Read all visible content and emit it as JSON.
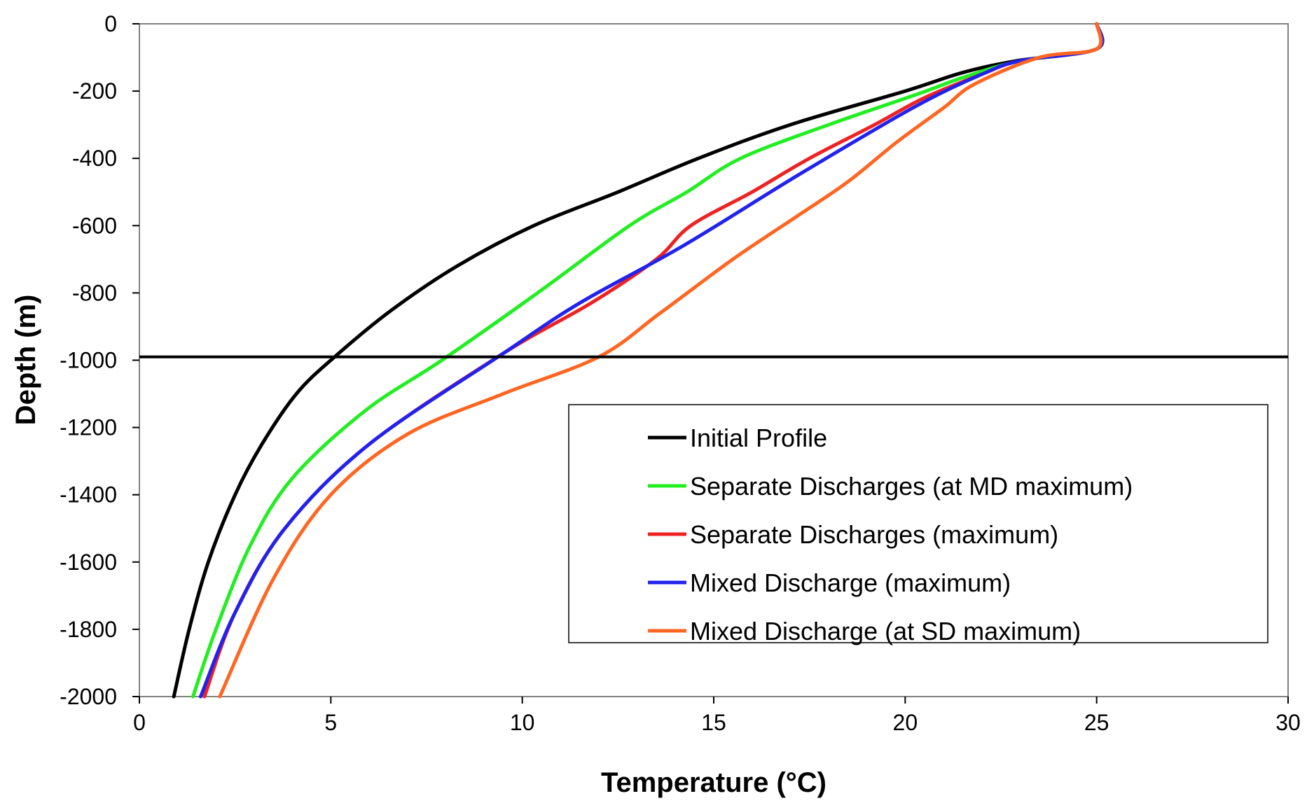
{
  "chart_data": {
    "type": "line",
    "title": "",
    "xlabel": "Temperature (°C)",
    "ylabel": "Depth (m)",
    "xlim": [
      0,
      30
    ],
    "ylim": [
      -2000,
      0
    ],
    "xticks": [
      0,
      5,
      10,
      15,
      20,
      25,
      30
    ],
    "yticks": [
      0,
      -200,
      -400,
      -600,
      -800,
      -1000,
      -1200,
      -1400,
      -1600,
      -1800,
      -2000
    ],
    "grid": false,
    "legend_position": "bottom-right",
    "reference_line": {
      "orientation": "horizontal",
      "y": -990,
      "color": "#000000"
    },
    "series": [
      {
        "name": "Initial Profile",
        "color": "#000000",
        "points": [
          [
            25,
            0
          ],
          [
            25,
            -75
          ],
          [
            22.9,
            -110
          ],
          [
            21.5,
            -145
          ],
          [
            20,
            -200
          ],
          [
            17,
            -300
          ],
          [
            14.6,
            -400
          ],
          [
            12.5,
            -500
          ],
          [
            10.3,
            -600
          ],
          [
            8.3,
            -720
          ],
          [
            6.6,
            -850
          ],
          [
            5.1,
            -990
          ],
          [
            4.1,
            -1100
          ],
          [
            3.2,
            -1250
          ],
          [
            2.5,
            -1400
          ],
          [
            1.8,
            -1600
          ],
          [
            1.3,
            -1800
          ],
          [
            0.9,
            -2000
          ]
        ]
      },
      {
        "name": "Separate Discharges (at MD maximum)",
        "color": "#22ee22",
        "points": [
          [
            25,
            0
          ],
          [
            25,
            -75
          ],
          [
            23,
            -110
          ],
          [
            21.5,
            -160
          ],
          [
            20.3,
            -210
          ],
          [
            18,
            -300
          ],
          [
            15.7,
            -400
          ],
          [
            14.3,
            -500
          ],
          [
            12.8,
            -600
          ],
          [
            10.4,
            -800
          ],
          [
            7.9,
            -1000
          ],
          [
            5.9,
            -1150
          ],
          [
            4,
            -1350
          ],
          [
            2.9,
            -1550
          ],
          [
            2,
            -1800
          ],
          [
            1.4,
            -2000
          ]
        ]
      },
      {
        "name": "Separate Discharges (maximum)",
        "color": "#ee2222",
        "points": [
          [
            25,
            0
          ],
          [
            25,
            -75
          ],
          [
            23,
            -110
          ],
          [
            22,
            -150
          ],
          [
            20.5,
            -220
          ],
          [
            19.2,
            -300
          ],
          [
            17.5,
            -400
          ],
          [
            16,
            -500
          ],
          [
            14.4,
            -600
          ],
          [
            13.5,
            -700
          ],
          [
            11.8,
            -830
          ],
          [
            9.5,
            -980
          ],
          [
            6,
            -1250
          ],
          [
            3.8,
            -1500
          ],
          [
            2.5,
            -1750
          ],
          [
            1.7,
            -2000
          ]
        ]
      },
      {
        "name": "Mixed Discharge (maximum)",
        "color": "#2222ee",
        "points": [
          [
            25,
            0
          ],
          [
            25,
            -75
          ],
          [
            23,
            -110
          ],
          [
            22,
            -150
          ],
          [
            20.2,
            -250
          ],
          [
            17.2,
            -450
          ],
          [
            14.2,
            -660
          ],
          [
            11.5,
            -830
          ],
          [
            9.5,
            -980
          ],
          [
            6,
            -1250
          ],
          [
            3.8,
            -1500
          ],
          [
            2.5,
            -1750
          ],
          [
            1.6,
            -2000
          ]
        ]
      },
      {
        "name": "Mixed Discharge (at SD maximum)",
        "color": "#ff6622",
        "points": [
          [
            25,
            0
          ],
          [
            25,
            -75
          ],
          [
            23.5,
            -100
          ],
          [
            21.8,
            -180
          ],
          [
            21,
            -250
          ],
          [
            19.8,
            -350
          ],
          [
            18.5,
            -470
          ],
          [
            17.2,
            -570
          ],
          [
            15.5,
            -700
          ],
          [
            13.6,
            -860
          ],
          [
            12,
            -990
          ],
          [
            9.5,
            -1100
          ],
          [
            7,
            -1220
          ],
          [
            5,
            -1400
          ],
          [
            3.5,
            -1650
          ],
          [
            2.1,
            -2000
          ]
        ]
      }
    ]
  }
}
